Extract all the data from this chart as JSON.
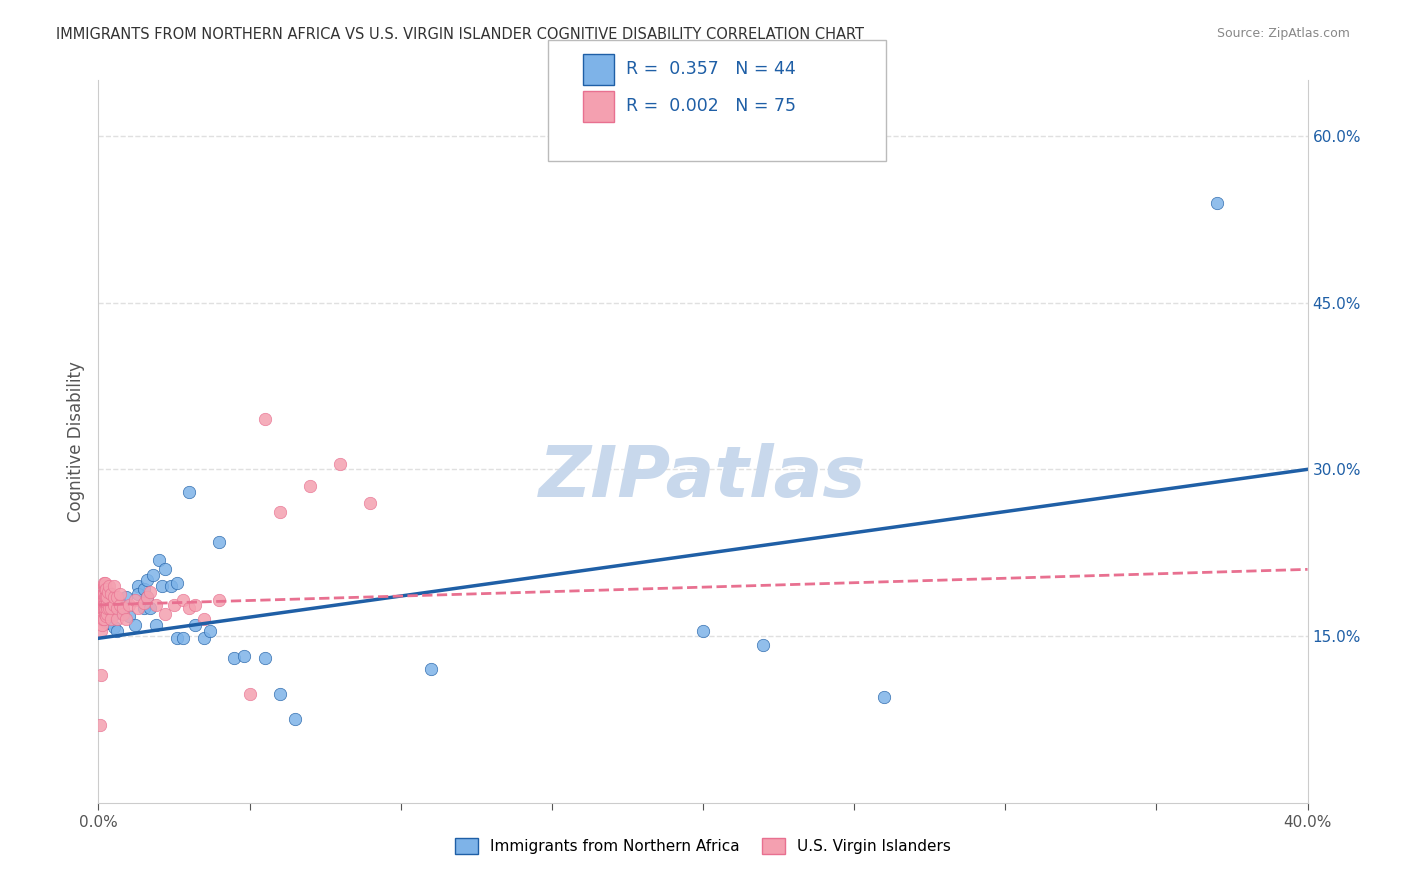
{
  "title": "IMMIGRANTS FROM NORTHERN AFRICA VS U.S. VIRGIN ISLANDER COGNITIVE DISABILITY CORRELATION CHART",
  "source": "Source: ZipAtlas.com",
  "xlabel": "",
  "ylabel": "Cognitive Disability",
  "xlim": [
    0,
    0.4
  ],
  "ylim": [
    0,
    0.65
  ],
  "xticks": [
    0.0,
    0.05,
    0.1,
    0.15,
    0.2,
    0.25,
    0.3,
    0.35,
    0.4
  ],
  "xticklabels": [
    "0.0%",
    "",
    "",
    "",
    "",
    "",
    "",
    "",
    "40.0%"
  ],
  "right_yticks": [
    0.15,
    0.3,
    0.45,
    0.6
  ],
  "right_yticklabels": [
    "15.0%",
    "30.0%",
    "45.0%",
    "60.0%"
  ],
  "legend_blue_r": "0.357",
  "legend_blue_n": "44",
  "legend_pink_r": "0.002",
  "legend_pink_n": "75",
  "legend_label_blue": "Immigrants from Northern Africa",
  "legend_label_pink": "U.S. Virgin Islanders",
  "blue_color": "#7EB3E8",
  "blue_line_color": "#1F5FA6",
  "pink_color": "#F4A0B0",
  "pink_line_color": "#E87090",
  "watermark": "ZIPatlas",
  "watermark_color": "#C8D8EC",
  "blue_scatter_x": [
    0.001,
    0.002,
    0.003,
    0.003,
    0.004,
    0.005,
    0.005,
    0.006,
    0.007,
    0.008,
    0.009,
    0.01,
    0.012,
    0.013,
    0.013,
    0.015,
    0.015,
    0.016,
    0.016,
    0.017,
    0.018,
    0.019,
    0.02,
    0.021,
    0.022,
    0.024,
    0.026,
    0.026,
    0.028,
    0.03,
    0.032,
    0.035,
    0.037,
    0.04,
    0.045,
    0.048,
    0.055,
    0.06,
    0.065,
    0.11,
    0.2,
    0.22,
    0.26,
    0.37
  ],
  "blue_scatter_y": [
    0.178,
    0.165,
    0.162,
    0.175,
    0.17,
    0.17,
    0.158,
    0.155,
    0.18,
    0.173,
    0.185,
    0.168,
    0.16,
    0.195,
    0.188,
    0.192,
    0.175,
    0.185,
    0.2,
    0.175,
    0.205,
    0.16,
    0.218,
    0.195,
    0.21,
    0.195,
    0.198,
    0.148,
    0.148,
    0.28,
    0.16,
    0.148,
    0.155,
    0.235,
    0.13,
    0.132,
    0.13,
    0.098,
    0.075,
    0.12,
    0.155,
    0.142,
    0.095,
    0.54
  ],
  "pink_scatter_x": [
    0.0005,
    0.0008,
    0.001,
    0.001,
    0.001,
    0.0012,
    0.0012,
    0.0013,
    0.0015,
    0.0015,
    0.0015,
    0.0015,
    0.0016,
    0.0018,
    0.0018,
    0.0018,
    0.0019,
    0.0019,
    0.002,
    0.002,
    0.002,
    0.002,
    0.002,
    0.0021,
    0.0021,
    0.0022,
    0.0022,
    0.0023,
    0.0023,
    0.0024,
    0.0025,
    0.0025,
    0.0026,
    0.0027,
    0.003,
    0.003,
    0.003,
    0.003,
    0.0032,
    0.0034,
    0.0035,
    0.004,
    0.004,
    0.004,
    0.005,
    0.005,
    0.005,
    0.006,
    0.006,
    0.006,
    0.007,
    0.007,
    0.008,
    0.008,
    0.009,
    0.01,
    0.012,
    0.013,
    0.015,
    0.016,
    0.017,
    0.019,
    0.022,
    0.025,
    0.028,
    0.03,
    0.032,
    0.035,
    0.04,
    0.05,
    0.055,
    0.06,
    0.07,
    0.08,
    0.09
  ],
  "pink_scatter_y": [
    0.07,
    0.115,
    0.155,
    0.165,
    0.17,
    0.16,
    0.17,
    0.175,
    0.165,
    0.178,
    0.182,
    0.188,
    0.175,
    0.185,
    0.19,
    0.195,
    0.175,
    0.182,
    0.165,
    0.178,
    0.188,
    0.195,
    0.198,
    0.17,
    0.18,
    0.175,
    0.185,
    0.192,
    0.198,
    0.178,
    0.168,
    0.185,
    0.192,
    0.178,
    0.17,
    0.175,
    0.18,
    0.185,
    0.19,
    0.195,
    0.175,
    0.165,
    0.175,
    0.188,
    0.178,
    0.185,
    0.195,
    0.165,
    0.175,
    0.185,
    0.178,
    0.188,
    0.17,
    0.175,
    0.165,
    0.178,
    0.182,
    0.175,
    0.18,
    0.185,
    0.19,
    0.178,
    0.17,
    0.178,
    0.182,
    0.175,
    0.178,
    0.165,
    0.182,
    0.098,
    0.345,
    0.262,
    0.285,
    0.305,
    0.27
  ],
  "blue_line_x": [
    0.0,
    0.4
  ],
  "blue_line_y": [
    0.148,
    0.3
  ],
  "pink_line_x": [
    0.0,
    0.4
  ],
  "pink_line_y": [
    0.178,
    0.21
  ],
  "grid_color": "#E0E0E0",
  "background_color": "#FFFFFF"
}
